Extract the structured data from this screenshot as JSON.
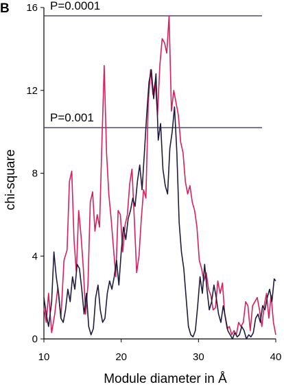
{
  "panel_label": "B",
  "chart_data": {
    "type": "line",
    "xlabel": "Module diameter in Å",
    "ylabel": "chi-square",
    "xlim": [
      10,
      40
    ],
    "ylim": [
      0,
      16
    ],
    "x_ticks": [
      10,
      20,
      30,
      40
    ],
    "y_ticks": [
      0,
      4,
      8,
      12,
      16
    ],
    "grid": false,
    "reference_lines": [
      {
        "label": "P=0.0001",
        "y": 15.6
      },
      {
        "label": "P=0.001",
        "y": 10.2
      }
    ],
    "series": [
      {
        "color": "#d81e5b",
        "x": [
          10,
          10.3,
          10.6,
          11,
          11.4,
          11.8,
          12.2,
          12.6,
          13,
          13.3,
          13.6,
          13.9,
          14.2,
          14.5,
          14.8,
          15.1,
          15.4,
          15.7,
          16,
          16.3,
          16.6,
          16.9,
          17.2,
          17.5,
          17.8,
          18.1,
          18.4,
          18.7,
          19,
          19.3,
          19.6,
          19.9,
          20.2,
          20.5,
          20.8,
          21.1,
          21.4,
          21.7,
          22,
          22.3,
          22.6,
          22.9,
          23.2,
          23.5,
          23.8,
          24.1,
          24.4,
          24.7,
          25,
          25.3,
          25.6,
          25.9,
          26.2,
          26.5,
          26.8,
          27.1,
          27.4,
          27.7,
          28,
          28.3,
          28.6,
          28.9,
          29.2,
          29.5,
          29.8,
          30.1,
          30.4,
          30.7,
          31,
          31.3,
          31.6,
          31.9,
          32.2,
          32.5,
          32.8,
          33.1,
          33.4,
          33.7,
          34,
          34.3,
          34.6,
          34.9,
          35.2,
          35.5,
          35.8,
          36.1,
          36.4,
          36.7,
          37,
          37.3,
          37.6,
          37.9,
          38.2,
          38.5,
          38.8,
          39.1,
          39.4,
          39.7,
          40
        ],
        "y": [
          1.5,
          0.8,
          2.2,
          0.3,
          1.2,
          2.5,
          1.0,
          3.8,
          4.3,
          7.6,
          8.1,
          4.8,
          3.2,
          6.2,
          5.0,
          3.4,
          1.2,
          2.6,
          6.6,
          7.1,
          5.2,
          6.0,
          5.4,
          9.4,
          13.2,
          9.0,
          7.0,
          5.8,
          4.4,
          3.0,
          6.2,
          6.0,
          4.2,
          5.5,
          6.0,
          7.5,
          8.2,
          5.8,
          3.2,
          4.0,
          5.8,
          7.2,
          6.8,
          11.4,
          13.0,
          11.8,
          12.4,
          10.8,
          13.2,
          14.5,
          14.3,
          13.8,
          15.6,
          11.0,
          12.0,
          11.4,
          10.8,
          9.5,
          9.0,
          7.6,
          7.0,
          7.4,
          6.6,
          6.2,
          5.4,
          3.8,
          3.4,
          2.8,
          3.2,
          2.4,
          2.1,
          1.4,
          1.5,
          2.8,
          2.2,
          2.7,
          1.2,
          0.5,
          0.6,
          0.2,
          0.4,
          0.2,
          0.8,
          0.6,
          0.8,
          1.8,
          1.6,
          0.4,
          1.6,
          1.8,
          2.0,
          1.4,
          0.6,
          1.6,
          2.2,
          1.0,
          2.1,
          0.8,
          0.2
        ]
      },
      {
        "color": "#1f1a3d",
        "x": [
          10,
          10.3,
          10.6,
          11,
          11.3,
          11.6,
          11.9,
          12.2,
          12.5,
          12.8,
          13.1,
          13.4,
          13.7,
          14,
          14.3,
          14.6,
          14.9,
          15.2,
          15.5,
          15.8,
          16.1,
          16.4,
          16.7,
          17,
          17.3,
          17.6,
          17.9,
          18.2,
          18.5,
          18.8,
          19.1,
          19.4,
          19.7,
          20,
          20.3,
          20.6,
          20.9,
          21.2,
          21.5,
          21.8,
          22.1,
          22.4,
          22.7,
          23,
          23.3,
          23.6,
          23.9,
          24.2,
          24.5,
          24.8,
          25.1,
          25.4,
          25.7,
          26,
          26.3,
          26.6,
          26.9,
          27.2,
          27.5,
          27.8,
          28.1,
          28.4,
          28.7,
          29,
          29.3,
          29.6,
          29.9,
          30.2,
          30.5,
          30.8,
          31.1,
          31.4,
          31.7,
          32,
          32.3,
          32.6,
          32.9,
          33.2,
          33.5,
          33.8,
          34.1,
          34.4,
          34.7,
          35,
          35.3,
          35.6,
          35.9,
          36.2,
          36.5,
          36.8,
          37.1,
          37.4,
          37.7,
          38,
          38.3,
          38.6,
          38.9,
          39.2,
          39.5,
          39.8,
          40
        ],
        "y": [
          2.0,
          1.2,
          0.6,
          1.8,
          4.2,
          3.0,
          2.2,
          1.0,
          0.8,
          1.4,
          2.4,
          1.8,
          3.0,
          2.4,
          3.6,
          3.4,
          2.4,
          1.2,
          2.2,
          0.6,
          0.2,
          0.5,
          2.0,
          2.6,
          1.4,
          0.8,
          1.0,
          2.2,
          2.8,
          2.4,
          3.0,
          3.8,
          2.6,
          4.2,
          5.4,
          4.8,
          5.8,
          6.2,
          6.8,
          6.4,
          7.6,
          8.4,
          7.2,
          9.0,
          10.8,
          12.4,
          13.0,
          11.6,
          12.8,
          9.6,
          10.4,
          8.2,
          7.4,
          7.0,
          9.2,
          10.0,
          11.2,
          9.0,
          5.6,
          4.2,
          3.4,
          2.0,
          0.6,
          0.2,
          0.1,
          0.4,
          1.6,
          3.0,
          2.2,
          3.6,
          2.4,
          1.4,
          1.8,
          2.6,
          2.0,
          1.2,
          0.8,
          1.6,
          1.0,
          0.4,
          0.2,
          0.0,
          0.3,
          0.1,
          0.2,
          0.6,
          0.4,
          0.0,
          0.2,
          0.1,
          0.3,
          1.0,
          1.2,
          0.8,
          1.6,
          1.4,
          2.0,
          2.4,
          1.8,
          2.9,
          2.8
        ]
      }
    ]
  }
}
